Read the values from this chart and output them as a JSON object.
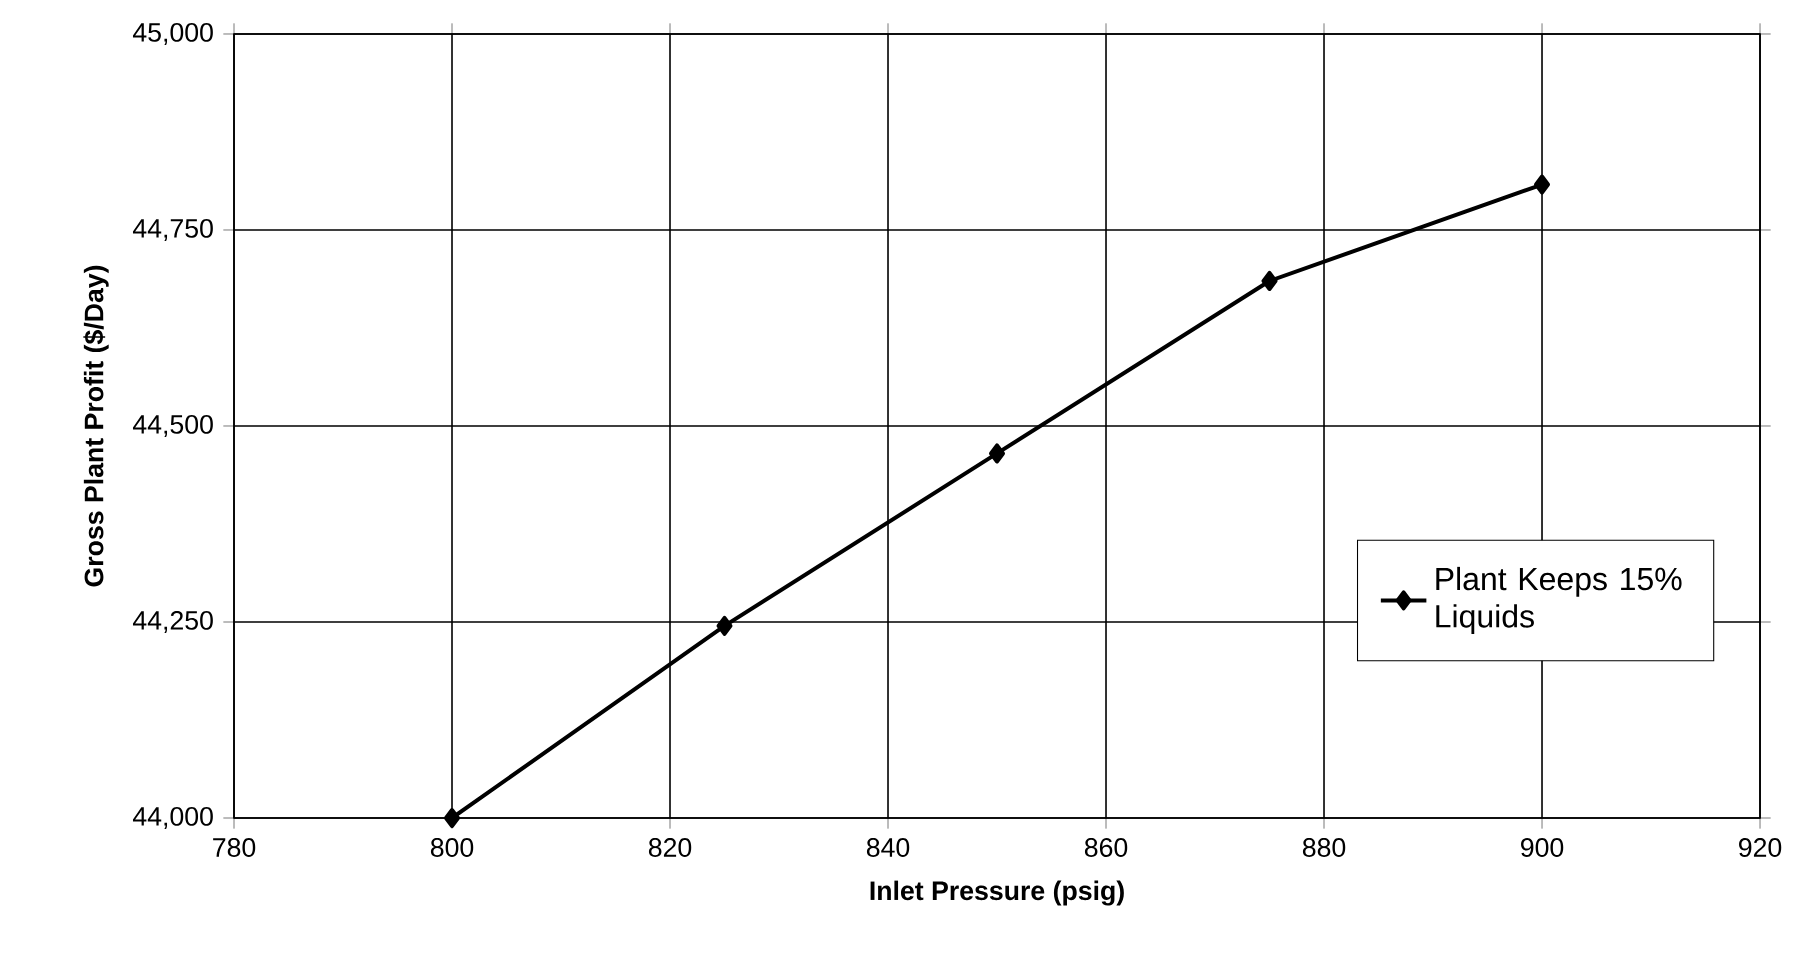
{
  "chart_data": {
    "type": "line",
    "xlabel": "Inlet Pressure (psig)",
    "ylabel": "Gross Plant Profit ($/Day)",
    "x": [
      800,
      825,
      850,
      875,
      900
    ],
    "series": [
      {
        "name": "Plant Keeps 15% Liquids",
        "color": "#000000",
        "values": [
          44000,
          44245,
          44465,
          44685,
          44808
        ]
      }
    ],
    "xlim": [
      780,
      920
    ],
    "xticks": [
      780,
      800,
      820,
      840,
      860,
      880,
      900,
      920
    ],
    "ylim": [
      44000,
      45000
    ],
    "yticks": [
      {
        "value": 44000,
        "label": "44,000"
      },
      {
        "value": 44250,
        "label": "44,250"
      },
      {
        "value": 44500,
        "label": "44,500"
      },
      {
        "value": 44750,
        "label": "44,750"
      },
      {
        "value": 45000,
        "label": "45,000"
      }
    ],
    "grid": true,
    "legend": "right",
    "marker": "diamond",
    "line_style": "solid"
  }
}
